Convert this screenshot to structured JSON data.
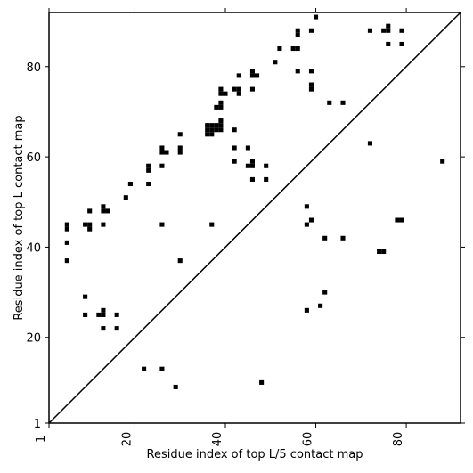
{
  "chart_data": {
    "type": "scatter",
    "title": "",
    "xlabel": "Residue index of top L/5 contact map",
    "ylabel": "Residue index of top L contact map",
    "xlim": [
      1,
      92
    ],
    "ylim": [
      1,
      92
    ],
    "xticks": [
      1,
      20,
      40,
      60,
      80
    ],
    "yticks": [
      1,
      20,
      40,
      60,
      80
    ],
    "xtick_rotation": -90,
    "diagonal": true,
    "grid": false,
    "cell_size": 1,
    "points": [
      [
        5,
        44
      ],
      [
        5,
        45
      ],
      [
        5,
        41
      ],
      [
        5,
        37
      ],
      [
        9,
        45
      ],
      [
        10,
        45
      ],
      [
        10,
        44
      ],
      [
        10,
        48
      ],
      [
        9,
        29
      ],
      [
        9,
        25
      ],
      [
        12,
        25
      ],
      [
        13,
        25
      ],
      [
        13,
        26
      ],
      [
        13,
        22
      ],
      [
        13,
        45
      ],
      [
        13,
        48
      ],
      [
        13,
        49
      ],
      [
        14,
        48
      ],
      [
        16,
        25
      ],
      [
        16,
        22
      ],
      [
        18,
        51
      ],
      [
        19,
        54
      ],
      [
        22,
        13
      ],
      [
        23,
        54
      ],
      [
        23,
        57
      ],
      [
        23,
        58
      ],
      [
        26,
        13
      ],
      [
        26,
        45
      ],
      [
        26,
        58
      ],
      [
        26,
        61
      ],
      [
        26,
        62
      ],
      [
        27,
        61
      ],
      [
        29,
        9
      ],
      [
        30,
        37
      ],
      [
        30,
        61
      ],
      [
        30,
        62
      ],
      [
        30,
        65
      ],
      [
        36,
        65
      ],
      [
        36,
        66
      ],
      [
        36,
        67
      ],
      [
        37,
        65
      ],
      [
        37,
        66
      ],
      [
        37,
        67
      ],
      [
        38,
        66
      ],
      [
        38,
        67
      ],
      [
        39,
        66
      ],
      [
        39,
        67
      ],
      [
        39,
        68
      ],
      [
        37,
        45
      ],
      [
        38,
        71
      ],
      [
        39,
        71
      ],
      [
        39,
        72
      ],
      [
        39,
        74
      ],
      [
        39,
        75
      ],
      [
        40,
        74
      ],
      [
        42,
        59
      ],
      [
        42,
        62
      ],
      [
        42,
        66
      ],
      [
        42,
        75
      ],
      [
        43,
        74
      ],
      [
        43,
        75
      ],
      [
        43,
        78
      ],
      [
        45,
        58
      ],
      [
        45,
        62
      ],
      [
        46,
        58
      ],
      [
        46,
        59
      ],
      [
        46,
        55
      ],
      [
        46,
        75
      ],
      [
        46,
        78
      ],
      [
        46,
        79
      ],
      [
        47,
        78
      ],
      [
        48,
        10
      ],
      [
        49,
        55
      ],
      [
        49,
        58
      ],
      [
        51,
        81
      ],
      [
        52,
        84
      ],
      [
        55,
        84
      ],
      [
        56,
        84
      ],
      [
        56,
        79
      ],
      [
        56,
        87
      ],
      [
        56,
        88
      ],
      [
        58,
        26
      ],
      [
        58,
        45
      ],
      [
        58,
        49
      ],
      [
        59,
        46
      ],
      [
        59,
        75
      ],
      [
        59,
        76
      ],
      [
        59,
        79
      ],
      [
        59,
        88
      ],
      [
        60,
        91
      ],
      [
        61,
        27
      ],
      [
        62,
        30
      ],
      [
        62,
        42
      ],
      [
        63,
        72
      ],
      [
        66,
        42
      ],
      [
        66,
        72
      ],
      [
        72,
        63
      ],
      [
        72,
        88
      ],
      [
        74,
        39
      ],
      [
        75,
        39
      ],
      [
        75,
        88
      ],
      [
        76,
        88
      ],
      [
        76,
        89
      ],
      [
        76,
        85
      ],
      [
        78,
        46
      ],
      [
        79,
        46
      ],
      [
        79,
        85
      ],
      [
        79,
        88
      ],
      [
        88,
        59
      ]
    ]
  }
}
